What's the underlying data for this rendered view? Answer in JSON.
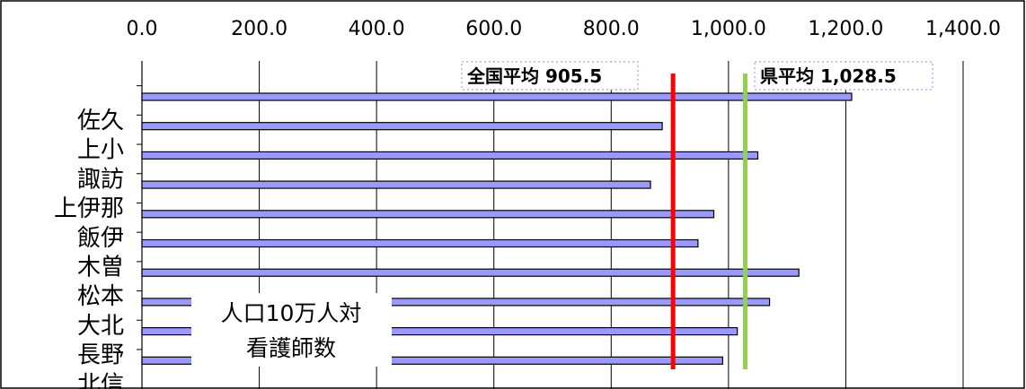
{
  "chart_data": {
    "type": "bar",
    "orientation": "horizontal",
    "categories": [
      "佐久",
      "上小",
      "諏訪",
      "上伊那",
      "飯伊",
      "木曽",
      "松本",
      "大北",
      "長野",
      "北信"
    ],
    "values": [
      1210,
      887,
      1050,
      867,
      975,
      948,
      1120,
      1070,
      1015,
      990
    ],
    "xlim": [
      0,
      1400
    ],
    "x_ticks": [
      "0.0",
      "200.0",
      "400.0",
      "600.0",
      "800.0",
      "1,000.0",
      "1,200.0",
      "1,400.0"
    ],
    "x_tick_values": [
      0,
      200,
      400,
      600,
      800,
      1000,
      1200,
      1400
    ],
    "grid": true,
    "bar_color": "#9999ff",
    "reference_lines": [
      {
        "label": "全国平均 905.5",
        "value": 905.5,
        "color": "#ff0000"
      },
      {
        "label": "県平均 1,028.5",
        "value": 1028.5,
        "color": "#92d050"
      }
    ],
    "annotation": {
      "line1": "人口10万人対",
      "line2": "看護師数"
    }
  }
}
